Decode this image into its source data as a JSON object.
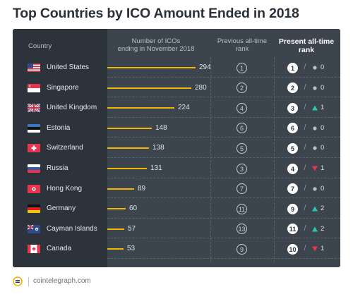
{
  "title": "Top Countries by ICO Amount Ended in 2018",
  "footer": {
    "site": "cointelegraph.com"
  },
  "headers": {
    "country": "Country",
    "icos_line1": "Number of ICOs",
    "icos_line2": "ending in November 2018",
    "prev_line1": "Previous all-time",
    "prev_line2": "rank",
    "present_line1": "Present all-time",
    "present_line2": "rank"
  },
  "colors": {
    "bar": "#f2b500",
    "up": "#2ec4b6",
    "down": "#e8344e",
    "neutral": "#b9c0c7"
  },
  "chart_data": {
    "type": "table",
    "title": "Top Countries by ICO Amount Ended in 2018",
    "columns": [
      "Country",
      "Number of ICOs ending in November 2018",
      "Previous all-time rank",
      "Present all-time rank"
    ],
    "rows": [
      {
        "country": "United States",
        "flag": "us-flag",
        "icos": 294,
        "previous_rank": 1,
        "present_rank": 1,
        "change_dir": "none",
        "change": 0
      },
      {
        "country": "Singapore",
        "flag": "singapore-flag",
        "icos": 280,
        "previous_rank": 2,
        "present_rank": 2,
        "change_dir": "none",
        "change": 0
      },
      {
        "country": "United Kingdom",
        "flag": "uk-flag",
        "icos": 224,
        "previous_rank": 4,
        "present_rank": 3,
        "change_dir": "up",
        "change": 1
      },
      {
        "country": "Estonia",
        "flag": "estonia-flag",
        "icos": 148,
        "previous_rank": 6,
        "present_rank": 6,
        "change_dir": "none",
        "change": 0
      },
      {
        "country": "Switzerland",
        "flag": "switzerland-flag",
        "icos": 138,
        "previous_rank": 5,
        "present_rank": 5,
        "change_dir": "none",
        "change": 0
      },
      {
        "country": "Russia",
        "flag": "russia-flag",
        "icos": 131,
        "previous_rank": 3,
        "present_rank": 4,
        "change_dir": "down",
        "change": 1
      },
      {
        "country": "Hong Kong",
        "flag": "hong-kong-flag",
        "icos": 89,
        "previous_rank": 7,
        "present_rank": 7,
        "change_dir": "none",
        "change": 0
      },
      {
        "country": "Germany",
        "flag": "germany-flag",
        "icos": 60,
        "previous_rank": 11,
        "present_rank": 9,
        "change_dir": "up",
        "change": 2
      },
      {
        "country": "Cayman Islands",
        "flag": "cayman-islands-flag",
        "icos": 57,
        "previous_rank": 13,
        "present_rank": 11,
        "change_dir": "up",
        "change": 2
      },
      {
        "country": "Canada",
        "flag": "canada-flag",
        "icos": 53,
        "previous_rank": 9,
        "present_rank": 10,
        "change_dir": "down",
        "change": 1
      }
    ]
  }
}
